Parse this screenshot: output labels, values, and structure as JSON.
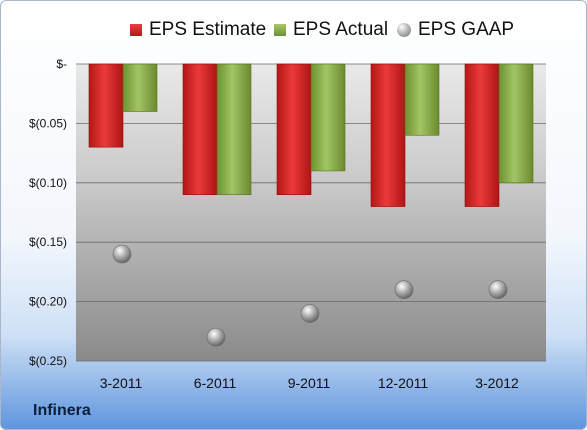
{
  "brand": "Infinera",
  "chart_data": {
    "type": "bar",
    "categories": [
      "3-2011",
      "6-2011",
      "9-2011",
      "12-2011",
      "3-2012"
    ],
    "series": [
      {
        "name": "EPS Estimate",
        "values": [
          -0.07,
          -0.11,
          -0.11,
          -0.12,
          -0.12
        ],
        "color": "#cf2323"
      },
      {
        "name": "EPS Actual",
        "values": [
          -0.04,
          -0.11,
          -0.09,
          -0.06,
          -0.1
        ],
        "color": "#8cb04a"
      },
      {
        "name": "EPS GAAP",
        "values": [
          -0.16,
          -0.23,
          -0.21,
          -0.19,
          -0.19
        ],
        "color": "#9a9a9a",
        "style": "point"
      }
    ],
    "yticks": [
      0,
      -0.05,
      -0.1,
      -0.15,
      -0.2,
      -0.25
    ],
    "ytick_labels": [
      "$-",
      "$(0.05)",
      "$(0.10)",
      "$(0.15)",
      "$(0.20)",
      "$(0.25)"
    ],
    "ylim": [
      -0.25,
      0
    ],
    "grid": true,
    "legend_position": "top"
  }
}
